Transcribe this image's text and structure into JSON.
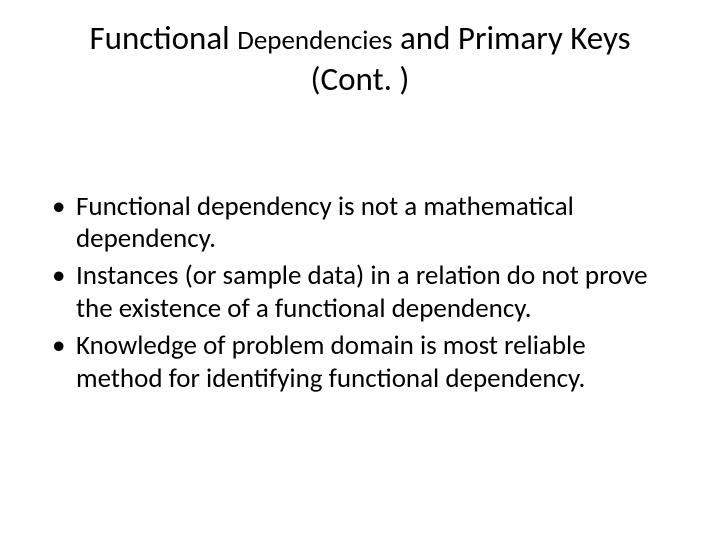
{
  "title": {
    "word1": "Functional",
    "word2": "Dependencies",
    "word3": "and Primary Keys (Cont. )"
  },
  "bullets": [
    "Functional dependency is not a mathematical dependency.",
    "Instances (or sample data) in a relation do not prove the existence of a functional dependency.",
    "Knowledge of problem domain is most reliable method for identifying functional dependency."
  ],
  "style": {
    "background_color": "#ffffff",
    "text_color": "#000000",
    "title_fontsize_main": 33,
    "title_fontsize_small": 27,
    "body_fontsize": 27,
    "font_family": "Calibri"
  }
}
